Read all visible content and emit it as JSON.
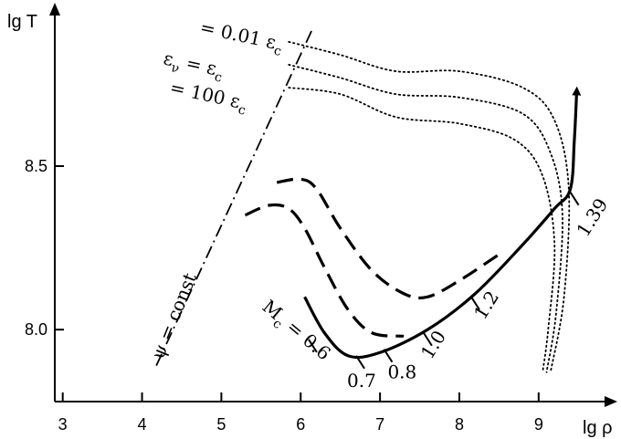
{
  "chart_data": {
    "type": "line",
    "xlabel": "lg ρ",
    "ylabel": "lg T",
    "xlim": [
      2.9,
      9.9
    ],
    "ylim": [
      7.78,
      8.98
    ],
    "x_ticks": [
      3,
      4,
      5,
      6,
      7,
      8,
      9
    ],
    "y_ticks": [
      8.0,
      8.5
    ],
    "grid": false,
    "series": [
      {
        "role": "main_track",
        "style": "solid-thick",
        "points": [
          [
            6.05,
            8.1
          ],
          [
            6.3,
            7.99
          ],
          [
            6.6,
            7.92
          ],
          [
            7.0,
            7.93
          ],
          [
            7.6,
            8.0
          ],
          [
            8.2,
            8.11
          ],
          [
            8.8,
            8.26
          ],
          [
            9.2,
            8.37
          ],
          [
            9.4,
            8.43
          ],
          [
            9.45,
            8.58
          ],
          [
            9.48,
            8.73
          ]
        ]
      },
      {
        "role": "dashed_track_1",
        "style": "dashed",
        "points": [
          [
            5.3,
            8.35
          ],
          [
            5.6,
            8.38
          ],
          [
            5.85,
            8.37
          ],
          [
            6.05,
            8.31
          ],
          [
            6.3,
            8.19
          ],
          [
            6.6,
            8.06
          ],
          [
            6.9,
            7.99
          ],
          [
            7.3,
            7.98
          ]
        ]
      },
      {
        "role": "dashed_track_2",
        "style": "dashed",
        "points": [
          [
            5.7,
            8.45
          ],
          [
            6.0,
            8.46
          ],
          [
            6.2,
            8.43
          ],
          [
            6.5,
            8.31
          ],
          [
            6.9,
            8.18
          ],
          [
            7.3,
            8.11
          ],
          [
            7.6,
            8.1
          ],
          [
            8.0,
            8.15
          ],
          [
            8.5,
            8.23
          ]
        ]
      },
      {
        "role": "neutrino_contour_001",
        "style": "dotted",
        "points": [
          [
            5.85,
            8.88
          ],
          [
            6.5,
            8.84
          ],
          [
            7.2,
            8.79
          ],
          [
            8.0,
            8.79
          ],
          [
            8.8,
            8.74
          ],
          [
            9.2,
            8.64
          ],
          [
            9.38,
            8.43
          ],
          [
            9.32,
            8.1
          ],
          [
            9.15,
            7.87
          ]
        ]
      },
      {
        "role": "neutrino_contour_1",
        "style": "dotted",
        "points": [
          [
            5.85,
            8.81
          ],
          [
            6.5,
            8.77
          ],
          [
            7.2,
            8.72
          ],
          [
            8.0,
            8.71
          ],
          [
            8.8,
            8.66
          ],
          [
            9.15,
            8.54
          ],
          [
            9.3,
            8.35
          ],
          [
            9.22,
            8.05
          ],
          [
            9.1,
            7.87
          ]
        ]
      },
      {
        "role": "neutrino_contour_100",
        "style": "dotted",
        "points": [
          [
            5.85,
            8.74
          ],
          [
            6.5,
            8.72
          ],
          [
            7.2,
            8.65
          ],
          [
            8.0,
            8.63
          ],
          [
            8.7,
            8.58
          ],
          [
            9.05,
            8.47
          ],
          [
            9.2,
            8.26
          ],
          [
            9.12,
            8.0
          ],
          [
            9.05,
            7.87
          ]
        ]
      },
      {
        "role": "psi_const",
        "style": "dash-dot",
        "points": [
          [
            4.18,
            7.89
          ],
          [
            6.15,
            8.92
          ]
        ]
      }
    ],
    "mass_marks": [
      {
        "label": "0.6",
        "x": 6.1,
        "y": 7.97
      },
      {
        "label": "0.7",
        "x": 6.7,
        "y": 7.92
      },
      {
        "label": "0.8",
        "x": 7.05,
        "y": 7.94
      },
      {
        "label": "1.0",
        "x": 7.55,
        "y": 7.99
      },
      {
        "label": "1.2",
        "x": 8.15,
        "y": 8.1
      },
      {
        "label": "1.39",
        "x": 9.4,
        "y": 8.42
      }
    ],
    "annotations": {
      "contour_top": "= 0.01 ε",
      "contour_top_sub": "c",
      "contour_mid": "ε",
      "contour_mid_sub1": "ν",
      "contour_mid_eq": " = ε",
      "contour_mid_sub2": "c",
      "contour_bot": "= 100 ε",
      "contour_bot_sub": "c",
      "psi": "ψ = const",
      "mass_label": "M",
      "mass_sub": "c",
      "mass_eq": " = 0.6"
    }
  }
}
